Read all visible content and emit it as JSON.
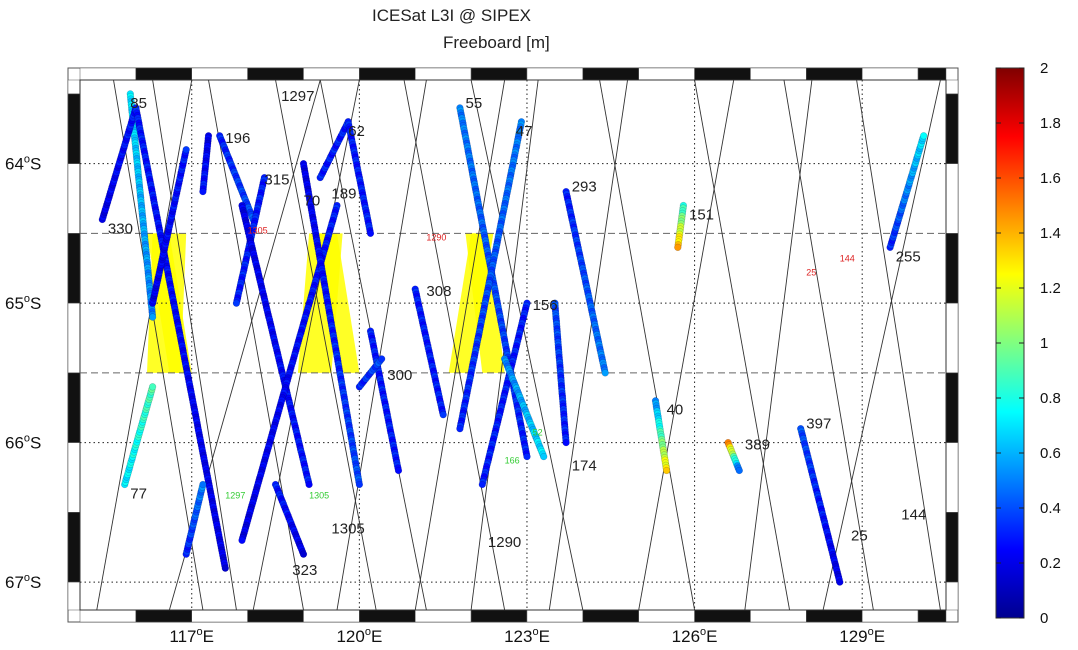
{
  "chart_data": {
    "type": "scatter",
    "title": "ICESat L3I @ SIPEX",
    "subtitle": "Freeboard [m]",
    "xlim": [
      115,
      130.5
    ],
    "ylim": [
      -67.2,
      -63.4
    ],
    "x_ticks": [
      {
        "value": 117,
        "num": "117",
        "deg": "o",
        "hemi": "E"
      },
      {
        "value": 120,
        "num": "120",
        "deg": "o",
        "hemi": "E"
      },
      {
        "value": 123,
        "num": "123",
        "deg": "o",
        "hemi": "E"
      },
      {
        "value": 126,
        "num": "126",
        "deg": "o",
        "hemi": "E"
      },
      {
        "value": 129,
        "num": "129",
        "deg": "o",
        "hemi": "E"
      }
    ],
    "y_ticks": [
      {
        "value": -64,
        "num": "64",
        "deg": "o",
        "hemi": "S"
      },
      {
        "value": -65,
        "num": "65",
        "deg": "o",
        "hemi": "S"
      },
      {
        "value": -66,
        "num": "66",
        "deg": "o",
        "hemi": "S"
      },
      {
        "value": -67,
        "num": "67",
        "deg": "o",
        "hemi": "S"
      }
    ],
    "dashed_latitudes": [
      -64.5,
      -65.5
    ],
    "grid": "dotted",
    "colorbar": {
      "range": [
        0,
        2
      ],
      "ticks": [
        "0",
        "0.2",
        "0.4",
        "0.6",
        "0.8",
        "1",
        "1.2",
        "1.4",
        "1.6",
        "1.8",
        "2"
      ],
      "colormap": [
        "#00008f",
        "#0000ff",
        "#0080ff",
        "#00ffff",
        "#80ff80",
        "#ffff00",
        "#ff8000",
        "#ff0000",
        "#800000"
      ]
    },
    "ground_tracks": [
      {
        "x1": 115.3,
        "y1": -67.2,
        "x2": 117.0,
        "y2": -63.4
      },
      {
        "x1": 117.2,
        "y1": -67.2,
        "x2": 115.6,
        "y2": -63.4
      },
      {
        "x1": 116.6,
        "y1": -67.2,
        "x2": 119.3,
        "y2": -63.4
      },
      {
        "x1": 117.8,
        "y1": -67.2,
        "x2": 116.3,
        "y2": -63.4
      },
      {
        "x1": 119.0,
        "y1": -67.2,
        "x2": 117.3,
        "y2": -63.4
      },
      {
        "x1": 118.1,
        "y1": -67.2,
        "x2": 120.0,
        "y2": -63.4
      },
      {
        "x1": 120.3,
        "y1": -67.2,
        "x2": 118.5,
        "y2": -63.4
      },
      {
        "x1": 119.6,
        "y1": -67.2,
        "x2": 121.2,
        "y2": -63.4
      },
      {
        "x1": 121.2,
        "y1": -67.2,
        "x2": 119.3,
        "y2": -63.4
      },
      {
        "x1": 121.0,
        "y1": -67.2,
        "x2": 122.6,
        "y2": -63.4
      },
      {
        "x1": 122.6,
        "y1": -67.2,
        "x2": 120.8,
        "y2": -63.4
      },
      {
        "x1": 122.0,
        "y1": -67.2,
        "x2": 123.2,
        "y2": -63.4
      },
      {
        "x1": 124.0,
        "y1": -67.2,
        "x2": 122.0,
        "y2": -63.4
      },
      {
        "x1": 123.4,
        "y1": -67.2,
        "x2": 124.8,
        "y2": -63.4
      },
      {
        "x1": 126.0,
        "y1": -67.2,
        "x2": 124.3,
        "y2": -63.4
      },
      {
        "x1": 125.0,
        "y1": -67.2,
        "x2": 126.7,
        "y2": -63.4
      },
      {
        "x1": 127.7,
        "y1": -67.2,
        "x2": 126.0,
        "y2": -63.4
      },
      {
        "x1": 126.9,
        "y1": -67.2,
        "x2": 128.1,
        "y2": -63.4
      },
      {
        "x1": 129.2,
        "y1": -67.2,
        "x2": 127.6,
        "y2": -63.4
      },
      {
        "x1": 128.3,
        "y1": -67.2,
        "x2": 130.4,
        "y2": -63.4
      },
      {
        "x1": 130.4,
        "y1": -67.2,
        "x2": 128.9,
        "y2": -63.4
      }
    ],
    "highlight_regions": [
      {
        "color": "#ffff00",
        "polys": [
          [
            [
              116.3,
              -64.5
            ],
            [
              116.9,
              -64.5
            ],
            [
              116.8,
              -65.5
            ],
            [
              116.2,
              -65.5
            ]
          ],
          [
            [
              116.2,
              -64.5
            ],
            [
              116.6,
              -64.5
            ],
            [
              117.0,
              -65.5
            ],
            [
              116.6,
              -65.5
            ]
          ]
        ]
      },
      {
        "color": "#ffff00",
        "polys": [
          [
            [
              119.1,
              -64.5
            ],
            [
              119.7,
              -64.5
            ],
            [
              119.5,
              -65.5
            ],
            [
              118.9,
              -65.5
            ]
          ],
          [
            [
              119.2,
              -64.5
            ],
            [
              119.6,
              -64.5
            ],
            [
              120.0,
              -65.5
            ],
            [
              119.6,
              -65.5
            ]
          ]
        ]
      },
      {
        "color": "#ffff00",
        "polys": [
          [
            [
              122.0,
              -64.5
            ],
            [
              122.4,
              -64.5
            ],
            [
              122.0,
              -65.5
            ],
            [
              121.6,
              -65.5
            ]
          ],
          [
            [
              121.9,
              -64.5
            ],
            [
              122.3,
              -64.5
            ],
            [
              122.6,
              -65.5
            ],
            [
              122.2,
              -65.5
            ]
          ]
        ]
      }
    ],
    "series": [
      {
        "name": "85",
        "x1": 115.9,
        "y1": -63.5,
        "x2": 116.3,
        "y2": -65.1,
        "v": [
          0.7,
          0.5
        ]
      },
      {
        "name": "330",
        "x1": 115.4,
        "y1": -64.4,
        "x2": 116.0,
        "y2": -63.6,
        "v": [
          0.2,
          0.3
        ]
      },
      {
        "name": "",
        "x1": 116.0,
        "y1": -63.6,
        "x2": 117.6,
        "y2": -66.9,
        "v": [
          0.3,
          0.2
        ]
      },
      {
        "name": "",
        "x1": 116.3,
        "y1": -65.0,
        "x2": 116.9,
        "y2": -63.9,
        "v": [
          0.2,
          0.3
        ]
      },
      {
        "name": "77",
        "x1": 115.8,
        "y1": -66.3,
        "x2": 116.3,
        "y2": -65.6,
        "v": [
          0.7,
          0.9
        ]
      },
      {
        "name": "",
        "x1": 116.9,
        "y1": -66.8,
        "x2": 117.2,
        "y2": -66.3,
        "v": [
          0.3,
          0.5
        ]
      },
      {
        "name": "196",
        "x1": 117.5,
        "y1": -63.8,
        "x2": 118.1,
        "y2": -64.4,
        "v": [
          0.3,
          0.4
        ]
      },
      {
        "name": "",
        "x1": 117.3,
        "y1": -63.8,
        "x2": 117.2,
        "y2": -64.2,
        "v": [
          0.2,
          0.3
        ]
      },
      {
        "name": "315",
        "x1": 118.3,
        "y1": -64.1,
        "x2": 117.8,
        "y2": -65.0,
        "v": [
          0.3,
          0.3
        ]
      },
      {
        "name": "",
        "x1": 117.9,
        "y1": -64.3,
        "x2": 119.1,
        "y2": -66.3,
        "v": [
          0.2,
          0.3
        ]
      },
      {
        "name": "",
        "x1": 119.6,
        "y1": -64.3,
        "x2": 117.9,
        "y2": -66.7,
        "v": [
          0.3,
          0.2
        ]
      },
      {
        "name": "323",
        "x1": 118.5,
        "y1": -66.3,
        "x2": 119.0,
        "y2": -66.8,
        "v": [
          0.3,
          0.2
        ]
      },
      {
        "name": "70",
        "x1": 119.0,
        "y1": -64.0,
        "x2": 120.0,
        "y2": -66.3,
        "v": [
          0.2,
          0.4
        ]
      },
      {
        "name": "189",
        "x1": 119.3,
        "y1": -64.1,
        "x2": 119.8,
        "y2": -63.7,
        "v": [
          0.3,
          0.3
        ]
      },
      {
        "name": "62",
        "x1": 119.8,
        "y1": -63.7,
        "x2": 120.2,
        "y2": -64.5,
        "v": [
          0.3,
          0.3
        ]
      },
      {
        "name": "",
        "x1": 120.2,
        "y1": -65.2,
        "x2": 120.7,
        "y2": -66.2,
        "v": [
          0.3,
          0.3
        ]
      },
      {
        "name": "300",
        "x1": 120.0,
        "y1": -65.6,
        "x2": 120.4,
        "y2": -65.4,
        "v": [
          0.3,
          0.4
        ]
      },
      {
        "name": "308",
        "x1": 121.0,
        "y1": -64.9,
        "x2": 121.5,
        "y2": -65.8,
        "v": [
          0.3,
          0.3
        ]
      },
      {
        "name": "55",
        "x1": 121.8,
        "y1": -63.6,
        "x2": 123.0,
        "y2": -66.1,
        "v": [
          0.5,
          0.3
        ]
      },
      {
        "name": "47",
        "x1": 122.9,
        "y1": -63.7,
        "x2": 121.8,
        "y2": -65.9,
        "v": [
          0.5,
          0.3
        ]
      },
      {
        "name": "156",
        "x1": 123.0,
        "y1": -65.0,
        "x2": 122.2,
        "y2": -66.3,
        "v": [
          0.3,
          0.3
        ]
      },
      {
        "name": "166",
        "x1": 122.6,
        "y1": -65.4,
        "x2": 123.3,
        "y2": -66.1,
        "v": [
          0.5,
          0.7
        ]
      },
      {
        "name": "174",
        "x1": 123.5,
        "y1": -65.0,
        "x2": 123.7,
        "y2": -66.0,
        "v": [
          0.4,
          0.3
        ]
      },
      {
        "name": "293",
        "x1": 123.7,
        "y1": -64.2,
        "x2": 124.4,
        "y2": -65.5,
        "v": [
          0.3,
          0.5
        ]
      },
      {
        "name": "151",
        "x1": 125.8,
        "y1": -64.3,
        "x2": 125.7,
        "y2": -64.6,
        "v": [
          0.8,
          1.4
        ]
      },
      {
        "name": "40",
        "x1": 125.3,
        "y1": -65.7,
        "x2": 125.5,
        "y2": -66.2,
        "v": [
          0.5,
          1.3
        ]
      },
      {
        "name": "389",
        "x1": 126.6,
        "y1": -66.0,
        "x2": 126.8,
        "y2": -66.2,
        "v": [
          1.5,
          0.4
        ]
      },
      {
        "name": "397",
        "x1": 127.9,
        "y1": -65.9,
        "x2": 128.6,
        "y2": -67.0,
        "v": [
          0.4,
          0.2
        ]
      },
      {
        "name": "255",
        "x1": 129.5,
        "y1": -64.6,
        "x2": 130.1,
        "y2": -63.8,
        "v": [
          0.3,
          0.7
        ]
      }
    ],
    "track_labels": [
      {
        "text": "85",
        "x": 115.9,
        "y": -63.6,
        "color": "#222",
        "size": 15
      },
      {
        "text": "330",
        "x": 115.5,
        "y": -64.5,
        "color": "#222",
        "size": 15
      },
      {
        "text": "196",
        "x": 117.6,
        "y": -63.85,
        "color": "#222",
        "size": 15
      },
      {
        "text": "315",
        "x": 118.3,
        "y": -64.15,
        "color": "#222",
        "size": 15
      },
      {
        "text": "1297",
        "x": 118.6,
        "y": -63.55,
        "color": "#222",
        "size": 15
      },
      {
        "text": "70",
        "x": 119.0,
        "y": -64.3,
        "color": "#222",
        "size": 15
      },
      {
        "text": "62",
        "x": 119.8,
        "y": -63.8,
        "color": "#222",
        "size": 15
      },
      {
        "text": "189",
        "x": 119.5,
        "y": -64.25,
        "color": "#222",
        "size": 15
      },
      {
        "text": "55",
        "x": 121.9,
        "y": -63.6,
        "color": "#222",
        "size": 15
      },
      {
        "text": "47",
        "x": 122.8,
        "y": -63.8,
        "color": "#222",
        "size": 15
      },
      {
        "text": "293",
        "x": 123.8,
        "y": -64.2,
        "color": "#222",
        "size": 15
      },
      {
        "text": "151",
        "x": 125.9,
        "y": -64.4,
        "color": "#222",
        "size": 15
      },
      {
        "text": "255",
        "x": 129.6,
        "y": -64.7,
        "color": "#222",
        "size": 15
      },
      {
        "text": "308",
        "x": 121.2,
        "y": -64.95,
        "color": "#222",
        "size": 15
      },
      {
        "text": "156",
        "x": 123.1,
        "y": -65.05,
        "color": "#222",
        "size": 15
      },
      {
        "text": "300",
        "x": 120.5,
        "y": -65.55,
        "color": "#222",
        "size": 15
      },
      {
        "text": "40",
        "x": 125.5,
        "y": -65.8,
        "color": "#222",
        "size": 15
      },
      {
        "text": "397",
        "x": 128.0,
        "y": -65.9,
        "color": "#222",
        "size": 15
      },
      {
        "text": "389",
        "x": 126.9,
        "y": -66.05,
        "color": "#222",
        "size": 15
      },
      {
        "text": "174",
        "x": 123.8,
        "y": -66.2,
        "color": "#222",
        "size": 15
      },
      {
        "text": "77",
        "x": 115.9,
        "y": -66.4,
        "color": "#222",
        "size": 15
      },
      {
        "text": "1305",
        "x": 119.5,
        "y": -66.65,
        "color": "#222",
        "size": 15
      },
      {
        "text": "1290",
        "x": 122.3,
        "y": -66.75,
        "color": "#222",
        "size": 15
      },
      {
        "text": "144",
        "x": 129.7,
        "y": -66.55,
        "color": "#222",
        "size": 15
      },
      {
        "text": "25",
        "x": 128.8,
        "y": -66.7,
        "color": "#222",
        "size": 15
      },
      {
        "text": "323",
        "x": 118.8,
        "y": -66.95,
        "color": "#222",
        "size": 15
      },
      {
        "text": "1305",
        "x": 118.0,
        "y": -64.5,
        "color": "#d22",
        "size": 9
      },
      {
        "text": "1290",
        "x": 121.2,
        "y": -64.55,
        "color": "#d22",
        "size": 9
      },
      {
        "text": "25",
        "x": 128.0,
        "y": -64.8,
        "color": "#d22",
        "size": 9
      },
      {
        "text": "144",
        "x": 128.6,
        "y": -64.7,
        "color": "#d22",
        "size": 9
      },
      {
        "text": "1297",
        "x": 117.6,
        "y": -66.4,
        "color": "#3c3",
        "size": 9
      },
      {
        "text": "1305",
        "x": 119.1,
        "y": -66.4,
        "color": "#3c3",
        "size": 9
      },
      {
        "text": "166",
        "x": 122.6,
        "y": -66.15,
        "color": "#3c3",
        "size": 9
      },
      {
        "text": "52",
        "x": 123.1,
        "y": -65.95,
        "color": "#3c3",
        "size": 9
      }
    ]
  }
}
